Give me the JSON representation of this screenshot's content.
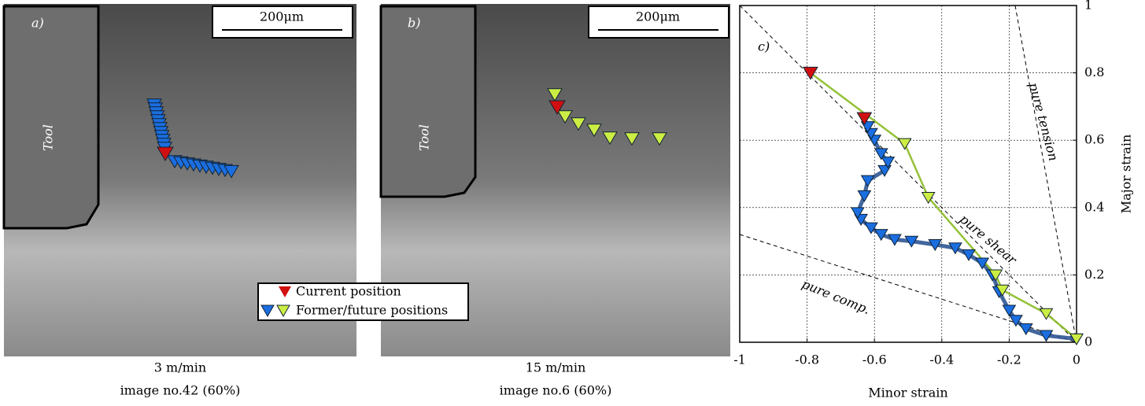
{
  "panels": [
    {
      "label": "a)",
      "tool": "Tool",
      "scale": "200μm",
      "caption": [
        "3 m/min",
        "image  no.42 (60%)"
      ]
    },
    {
      "label": "b)",
      "tool": "Tool",
      "scale": "200μm",
      "caption": [
        "15 m/min",
        "image  no.6 (60%)"
      ]
    }
  ],
  "legend": {
    "current": "Current position",
    "former": "Former/future positions"
  },
  "chart_data": {
    "type": "line",
    "label": "c)",
    "x_label": "Minor strain",
    "y_label": "Major strain",
    "xlim": [
      -1,
      0
    ],
    "ylim": [
      0,
      1
    ],
    "xticks": [
      -1,
      -0.8,
      -0.6,
      -0.4,
      -0.2,
      0
    ],
    "yticks": [
      0,
      0.2,
      0.4,
      0.6,
      0.8,
      1
    ],
    "grid": true,
    "annotations": [
      "pure tension",
      "pure shear",
      "pure comp."
    ],
    "series": [
      {
        "color": "#1a6ee0",
        "line_color": "#2f5694",
        "x": [
          0,
          -0.09,
          -0.15,
          -0.18,
          -0.2,
          -0.23,
          -0.25,
          -0.28,
          -0.32,
          -0.36,
          -0.42,
          -0.49,
          -0.54,
          -0.58,
          -0.61,
          -0.64,
          -0.65,
          -0.63,
          -0.62,
          -0.57,
          -0.56,
          -0.58,
          -0.6,
          -0.61,
          -0.62,
          -0.63
        ],
        "values": [
          0.01,
          0.02,
          0.04,
          0.065,
          0.095,
          0.15,
          0.2,
          0.235,
          0.26,
          0.28,
          0.29,
          0.3,
          0.305,
          0.32,
          0.34,
          0.365,
          0.385,
          0.435,
          0.48,
          0.51,
          0.535,
          0.56,
          0.6,
          0.62,
          0.64,
          0.665
        ]
      },
      {
        "color": "#ccee44",
        "line_color": "#88bb22",
        "x": [
          -0.79,
          -0.51,
          -0.44,
          -0.24,
          -0.22,
          -0.09,
          0
        ],
        "values": [
          0.8,
          0.59,
          0.43,
          0.2,
          0.155,
          0.085,
          0.01
        ]
      },
      {
        "color": "#d01010",
        "x": [
          -0.63,
          -0.79
        ],
        "values": [
          0.665,
          0.8
        ]
      }
    ]
  }
}
